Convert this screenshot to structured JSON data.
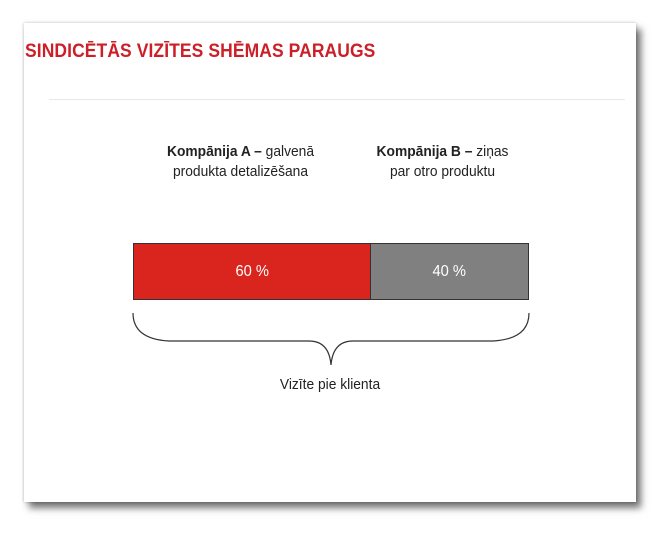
{
  "slide": {
    "title": "SINDICĒTĀS VIZĪTES SHĒMAS PARAUGS"
  },
  "diagram": {
    "company_a": {
      "name": "Kompānija A –",
      "line1_rest": " galvenā",
      "line2": "produkta detalizēšana",
      "share_label": "60 %",
      "share": 0.6,
      "color": "#d9251d"
    },
    "company_b": {
      "name": "Kompānija B –",
      "line1_rest": " ziņas",
      "line2": "par otro produktu",
      "share_label": "40 %",
      "share": 0.4,
      "color": "#808080"
    },
    "caption": "Vizīte pie klienta"
  },
  "colors": {
    "title": "#cc1f27"
  }
}
